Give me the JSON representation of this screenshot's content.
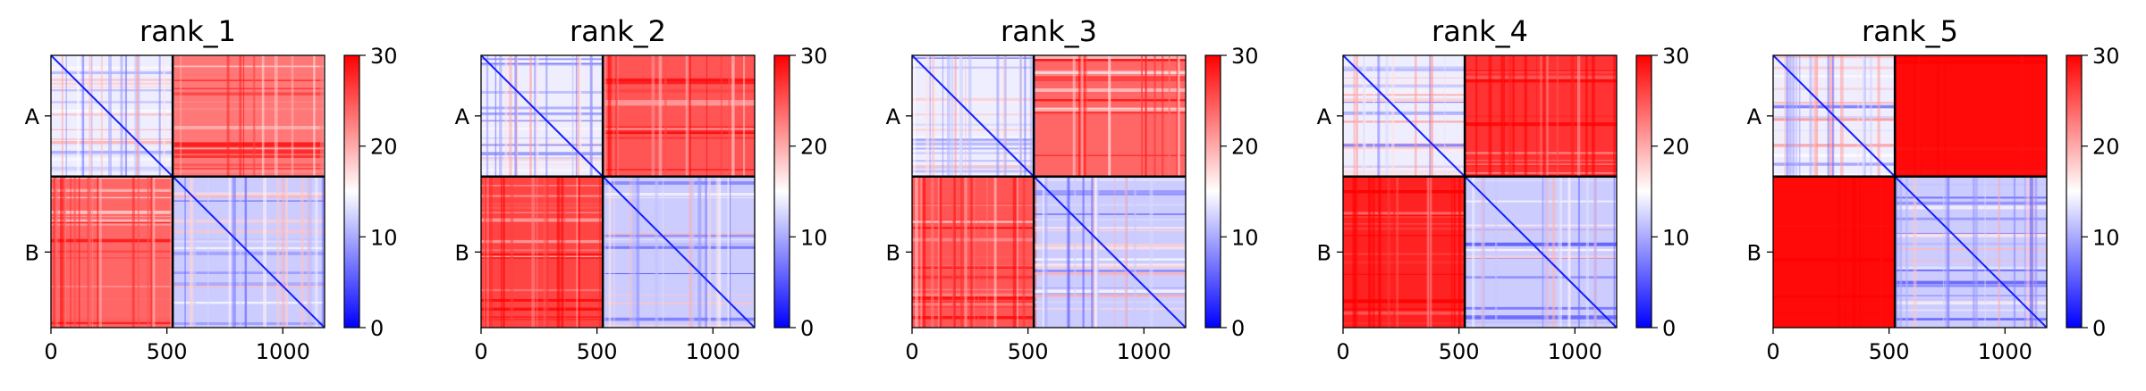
{
  "chart_data": [
    {
      "type": "heatmap",
      "title": "rank_1",
      "chains": [
        {
          "label": "A",
          "start": 0,
          "end": 525
        },
        {
          "label": "B",
          "start": 525,
          "end": 1180
        }
      ],
      "x_ticks": [
        0,
        500,
        1000
      ],
      "xlim": [
        0,
        1180
      ],
      "colorbar": {
        "min": 0,
        "max": 30,
        "ticks": [
          0,
          10,
          20,
          30
        ],
        "colors": [
          "#0000ff",
          "#ffffff",
          "#ff0000"
        ]
      },
      "mean_values": {
        "A_A": 14,
        "A_B": 23,
        "B_A": 24,
        "B_B": 12
      }
    },
    {
      "type": "heatmap",
      "title": "rank_2",
      "chains": [
        {
          "label": "A",
          "start": 0,
          "end": 525
        },
        {
          "label": "B",
          "start": 525,
          "end": 1180
        }
      ],
      "x_ticks": [
        0,
        500,
        1000
      ],
      "xlim": [
        0,
        1180
      ],
      "colorbar": {
        "min": 0,
        "max": 30,
        "ticks": [
          0,
          10,
          20,
          30
        ],
        "colors": [
          "#0000ff",
          "#ffffff",
          "#ff0000"
        ]
      },
      "mean_values": {
        "A_A": 14,
        "A_B": 25,
        "B_A": 26,
        "B_B": 12
      }
    },
    {
      "type": "heatmap",
      "title": "rank_3",
      "chains": [
        {
          "label": "A",
          "start": 0,
          "end": 525
        },
        {
          "label": "B",
          "start": 525,
          "end": 1180
        }
      ],
      "x_ticks": [
        0,
        500,
        1000
      ],
      "xlim": [
        0,
        1180
      ],
      "colorbar": {
        "min": 0,
        "max": 30,
        "ticks": [
          0,
          10,
          20,
          30
        ],
        "colors": [
          "#0000ff",
          "#ffffff",
          "#ff0000"
        ]
      },
      "mean_values": {
        "A_A": 14,
        "A_B": 24,
        "B_A": 25,
        "B_B": 12
      }
    },
    {
      "type": "heatmap",
      "title": "rank_4",
      "chains": [
        {
          "label": "A",
          "start": 0,
          "end": 525
        },
        {
          "label": "B",
          "start": 525,
          "end": 1180
        }
      ],
      "x_ticks": [
        0,
        500,
        1000
      ],
      "xlim": [
        0,
        1180
      ],
      "colorbar": {
        "min": 0,
        "max": 30,
        "ticks": [
          0,
          10,
          20,
          30
        ],
        "colors": [
          "#0000ff",
          "#ffffff",
          "#ff0000"
        ]
      },
      "mean_values": {
        "A_A": 14,
        "A_B": 27,
        "B_A": 28,
        "B_B": 12
      }
    },
    {
      "type": "heatmap",
      "title": "rank_5",
      "chains": [
        {
          "label": "A",
          "start": 0,
          "end": 525
        },
        {
          "label": "B",
          "start": 525,
          "end": 1180
        }
      ],
      "x_ticks": [
        0,
        500,
        1000
      ],
      "xlim": [
        0,
        1180
      ],
      "colorbar": {
        "min": 0,
        "max": 30,
        "ticks": [
          0,
          10,
          20,
          30
        ],
        "colors": [
          "#0000ff",
          "#ffffff",
          "#ff0000"
        ]
      },
      "mean_values": {
        "A_A": 14,
        "A_B": 29.5,
        "B_A": 29.5,
        "B_B": 12
      }
    }
  ]
}
